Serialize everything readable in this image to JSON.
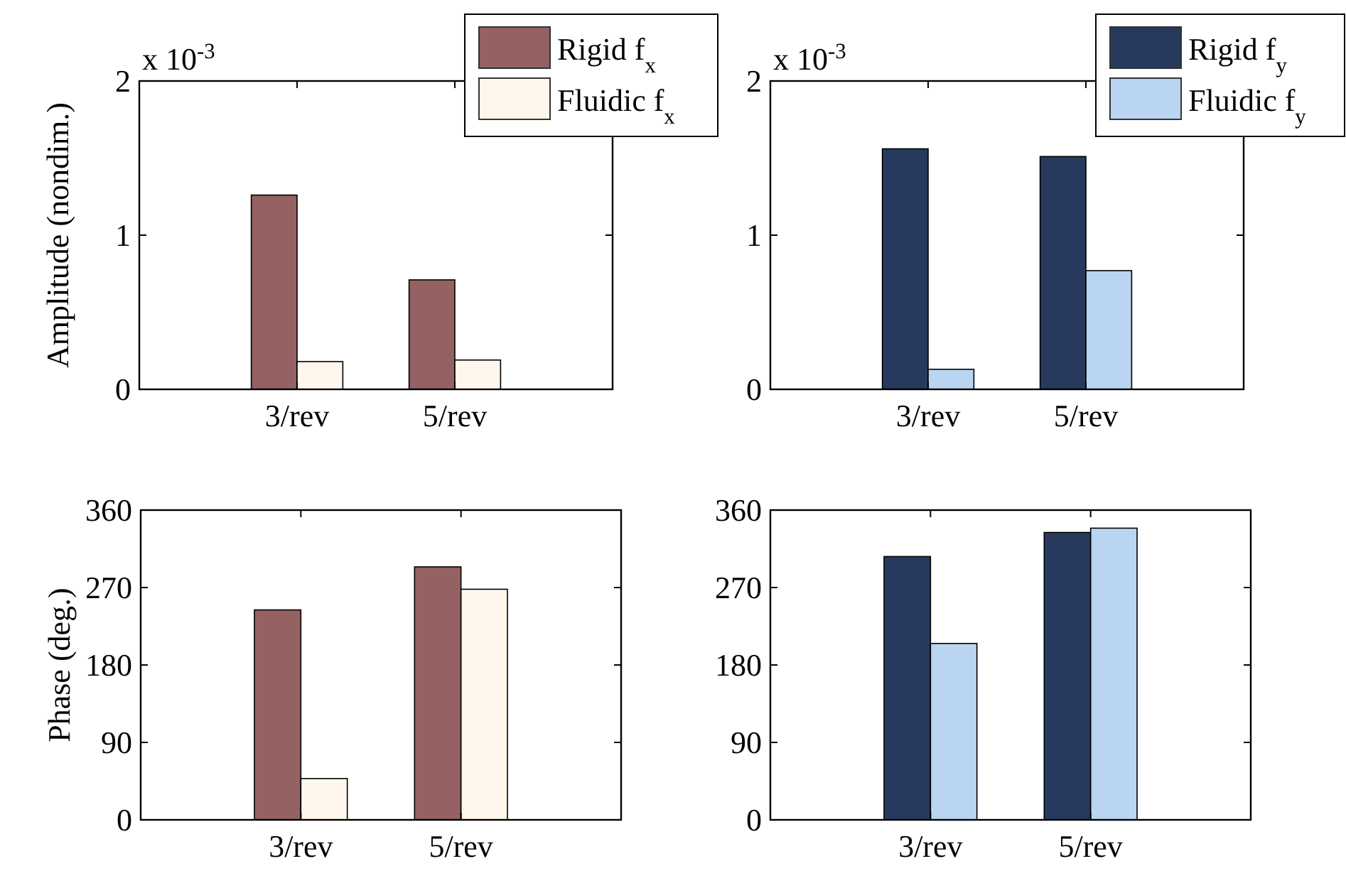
{
  "chart_data": [
    {
      "type": "bar",
      "ylabel": "Amplitude (nondim.)",
      "categories": [
        "3/rev",
        "5/rev"
      ],
      "ylim": [
        0,
        2
      ],
      "yticks": [
        0,
        1,
        2
      ],
      "legend": "top right",
      "annotations": [
        "x 10$^{-3}$"
      ],
      "series": [
        {
          "name": "Rigid f$_{x}$",
          "color": "#946262",
          "values": [
            1.26,
            0.71
          ]
        },
        {
          "name": "Fluidic f$_{x}$",
          "color": "#fff7ec",
          "values": [
            0.18,
            0.19
          ]
        }
      ]
    },
    {
      "type": "bar",
      "categories": [
        "3/rev",
        "5/rev"
      ],
      "ylim": [
        0,
        2
      ],
      "yticks": [
        0,
        1,
        2
      ],
      "legend": "top right",
      "annotations": [
        "x 10$^{-3}$"
      ],
      "series": [
        {
          "name": "Rigid f$_{y}$",
          "color": "#273a5e",
          "values": [
            1.56,
            1.51
          ]
        },
        {
          "name": "Fluidic f$_{y}$",
          "color": "#bad5f2",
          "values": [
            0.13,
            0.77
          ]
        }
      ]
    },
    {
      "type": "bar",
      "ylabel": "Phase (deg.)",
      "categories": [
        "3/rev",
        "5/rev"
      ],
      "ylim": [
        0,
        360
      ],
      "yticks": [
        0,
        90,
        180,
        270,
        360
      ],
      "series": [
        {
          "color": "#946262",
          "values": [
            244,
            294
          ]
        },
        {
          "color": "#fff7ec",
          "values": [
            48,
            268
          ]
        }
      ]
    },
    {
      "type": "bar",
      "categories": [
        "3/rev",
        "5/rev"
      ],
      "ylim": [
        0,
        360
      ],
      "yticks": [
        0,
        90,
        180,
        270,
        360
      ],
      "series": [
        {
          "color": "#273a5e",
          "values": [
            306,
            334
          ]
        },
        {
          "color": "#bad5f2",
          "values": [
            205,
            339
          ]
        }
      ]
    }
  ]
}
